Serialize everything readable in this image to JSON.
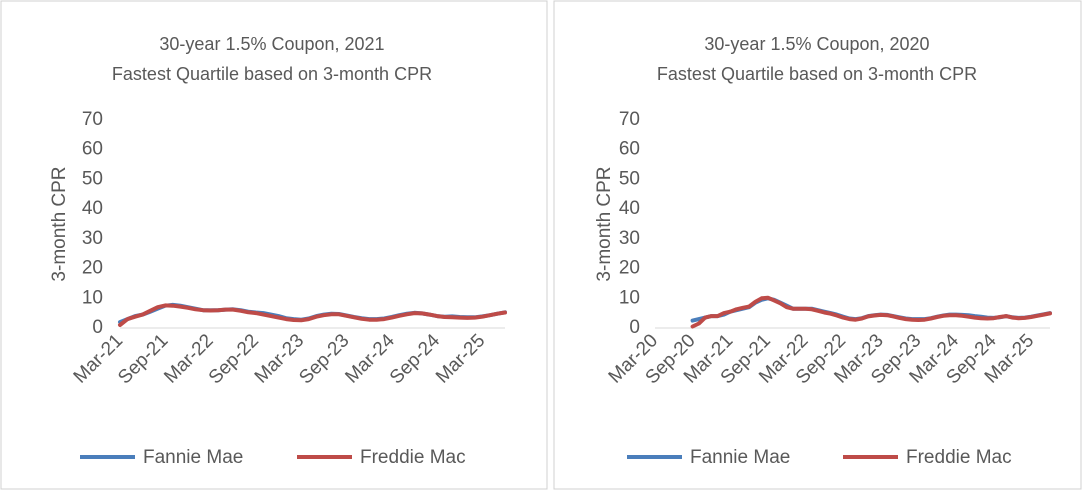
{
  "chart_data": [
    {
      "type": "line",
      "title": "30-year 1.5% Coupon, 2021",
      "subtitle": "Fastest Quartile based on 3-month CPR",
      "y_label": "3-month CPR",
      "categories": [
        "Mar-21",
        null,
        null,
        null,
        null,
        null,
        "Sep-21",
        null,
        null,
        null,
        null,
        null,
        "Mar-22",
        null,
        null,
        null,
        null,
        null,
        "Sep-22",
        null,
        null,
        null,
        null,
        null,
        "Mar-23",
        null,
        null,
        null,
        null,
        null,
        "Sep-23",
        null,
        null,
        null,
        null,
        null,
        "Mar-24",
        null,
        null,
        null,
        null,
        null,
        "Sep-24",
        null,
        null,
        null,
        null,
        null,
        "Mar-25",
        null,
        null,
        null
      ],
      "series": [
        {
          "name": "Fannie Mae",
          "color": "#4a7ebb",
          "values": [
            2,
            3,
            4,
            4.5,
            5.5,
            6.5,
            7.5,
            7.8,
            7.5,
            7,
            6.5,
            6,
            6,
            6,
            6.2,
            6.3,
            6,
            5.5,
            5.2,
            5,
            4.5,
            4,
            3.3,
            3,
            2.8,
            3.2,
            4,
            4.5,
            4.8,
            4.7,
            4.2,
            3.7,
            3.3,
            3,
            3,
            3.2,
            3.7,
            4.3,
            4.8,
            5.1,
            4.9,
            4.5,
            4,
            3.8,
            3.9,
            3.7,
            3.6,
            3.6,
            3.9,
            4.3,
            4.8,
            5.3
          ]
        },
        {
          "name": "Freddie Mac",
          "color": "#be4b48",
          "values": [
            1,
            3,
            3.8,
            4.5,
            5.8,
            7,
            7.6,
            7.5,
            7.2,
            6.8,
            6.3,
            6,
            5.9,
            6,
            6.2,
            6.2,
            5.8,
            5.3,
            5,
            4.5,
            4,
            3.5,
            3,
            2.7,
            2.6,
            3,
            3.8,
            4.3,
            4.6,
            4.6,
            4.1,
            3.6,
            3.1,
            2.8,
            2.8,
            3,
            3.5,
            4.1,
            4.6,
            5,
            4.9,
            4.5,
            4,
            3.7,
            3.6,
            3.5,
            3.4,
            3.5,
            3.8,
            4.3,
            4.8,
            5.2
          ]
        }
      ],
      "ylim": [
        0,
        70
      ],
      "yticks": [
        0,
        10,
        20,
        30,
        40,
        50,
        60,
        70
      ],
      "grid": false,
      "legend": "bottom"
    },
    {
      "type": "line",
      "title": "30-year 1.5% Coupon, 2020",
      "subtitle": "Fastest Quartile based on 3-month CPR",
      "y_label": "3-month CPR",
      "categories": [
        "Mar-20",
        null,
        null,
        null,
        null,
        null,
        "Sep-20",
        null,
        null,
        null,
        null,
        null,
        "Mar-21",
        null,
        null,
        null,
        null,
        null,
        "Sep-21",
        null,
        null,
        null,
        null,
        null,
        "Mar-22",
        null,
        null,
        null,
        null,
        null,
        "Sep-22",
        null,
        null,
        null,
        null,
        null,
        "Mar-23",
        null,
        null,
        null,
        null,
        null,
        "Sep-23",
        null,
        null,
        null,
        null,
        null,
        "Mar-24",
        null,
        null,
        null,
        null,
        null,
        "Sep-24",
        null,
        null,
        null,
        null,
        null,
        "Mar-25",
        null,
        null,
        null
      ],
      "series": [
        {
          "name": "Fannie Mae",
          "color": "#4a7ebb",
          "values": [
            null,
            null,
            null,
            null,
            null,
            null,
            2.5,
            3,
            3.5,
            4,
            4,
            4.5,
            5.5,
            6,
            6.5,
            7,
            8.5,
            9.5,
            10,
            9.5,
            8.5,
            7.5,
            6.5,
            6.5,
            6.5,
            6.5,
            6,
            5.5,
            5,
            4.5,
            3.8,
            3.2,
            3,
            3.3,
            4,
            4.3,
            4.5,
            4.4,
            4,
            3.6,
            3.2,
            3,
            3,
            3,
            3.3,
            3.8,
            4.2,
            4.5,
            4.5,
            4.4,
            4.3,
            4,
            3.8,
            3.5,
            3.4,
            3.6,
            4,
            3.6,
            3.4,
            3.5,
            3.8,
            4.2,
            4.6,
            5
          ]
        },
        {
          "name": "Freddie Mac",
          "color": "#be4b48",
          "values": [
            null,
            null,
            null,
            null,
            null,
            null,
            0.5,
            1.5,
            3.5,
            4,
            4,
            5,
            5.5,
            6.3,
            6.8,
            7.2,
            8.8,
            10,
            10.2,
            9.3,
            8.3,
            7,
            6.5,
            6.5,
            6.5,
            6.3,
            5.8,
            5.2,
            4.8,
            4.2,
            3.5,
            3,
            2.8,
            3.2,
            3.9,
            4.2,
            4.4,
            4.3,
            3.9,
            3.4,
            3,
            2.8,
            2.7,
            2.8,
            3.2,
            3.7,
            4.1,
            4.3,
            4.3,
            4.1,
            3.8,
            3.5,
            3.3,
            3.2,
            3.3,
            3.7,
            4,
            3.5,
            3.3,
            3.4,
            3.7,
            4.1,
            4.5,
            4.9
          ]
        }
      ],
      "ylim": [
        0,
        70
      ],
      "yticks": [
        0,
        10,
        20,
        30,
        40,
        50,
        60,
        70
      ],
      "grid": false,
      "legend": "bottom"
    }
  ]
}
